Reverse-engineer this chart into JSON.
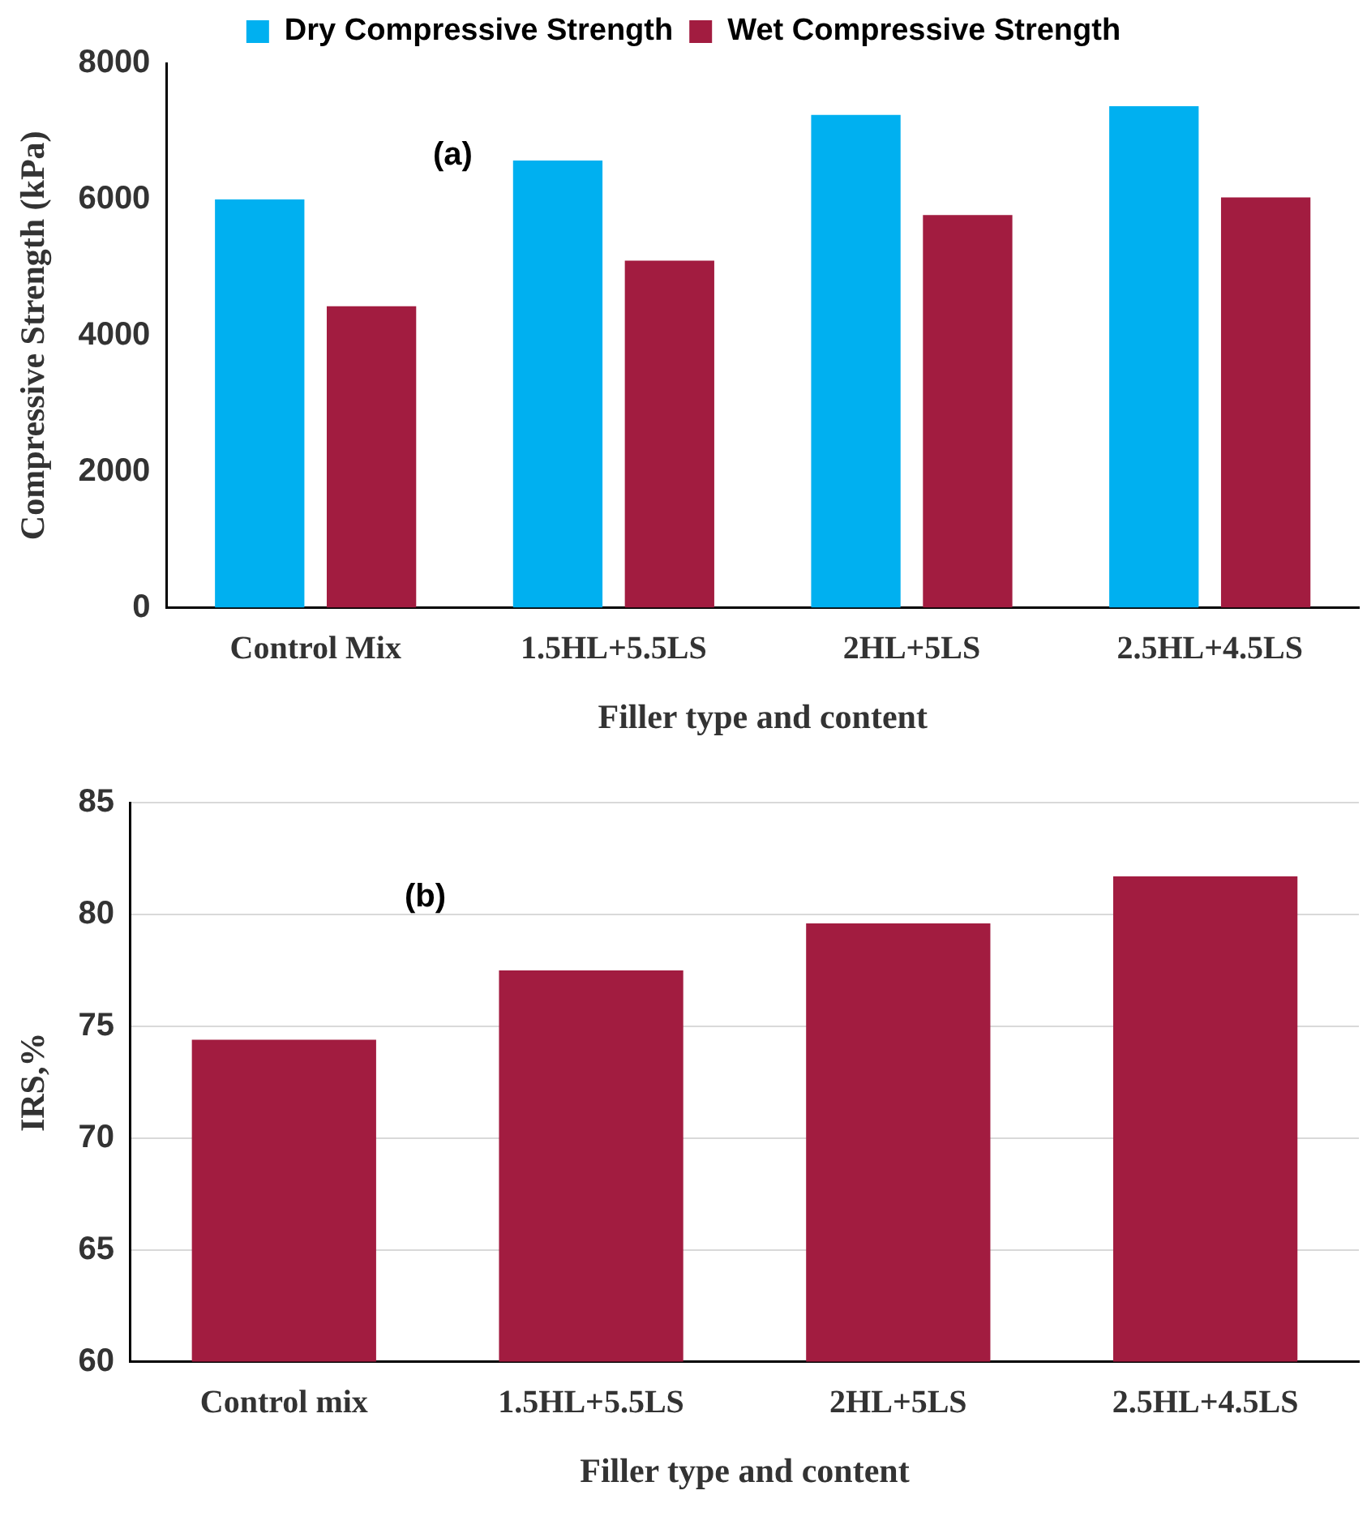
{
  "chart_data": [
    {
      "type": "bar",
      "xlabel": "Filler type and content",
      "ylabel": "Compressive Strength (kPa)",
      "categories": [
        "Control Mix",
        "1.5HL+5.5LS",
        "2HL+5LS",
        "2.5HL+4.5LS"
      ],
      "series": [
        {
          "name": "Dry Compressive Strength",
          "color": "#00b0f0",
          "values": [
            6000,
            6570,
            7240,
            7370
          ]
        },
        {
          "name": "Wet Compressive Strength",
          "color": "#a21c40",
          "values": [
            4430,
            5100,
            5770,
            6030
          ]
        }
      ],
      "ylim": [
        0,
        8000
      ],
      "yticks": [
        0,
        2000,
        4000,
        6000,
        8000
      ],
      "grid": false,
      "legend": "top",
      "annotations": [
        "(a)"
      ]
    },
    {
      "type": "bar",
      "xlabel": "Filler type and content",
      "ylabel": "IRS,%",
      "categories": [
        "Control mix",
        "1.5HL+5.5LS",
        "2HL+5LS",
        "2.5HL+4.5LS"
      ],
      "series": [
        {
          "color": "#a21c40",
          "values": [
            74.4,
            77.5,
            79.6,
            81.7
          ]
        }
      ],
      "ylim": [
        60,
        85
      ],
      "yticks": [
        60,
        65,
        70,
        75,
        80,
        85
      ],
      "grid": "y",
      "annotations": [
        "(b)"
      ]
    }
  ]
}
